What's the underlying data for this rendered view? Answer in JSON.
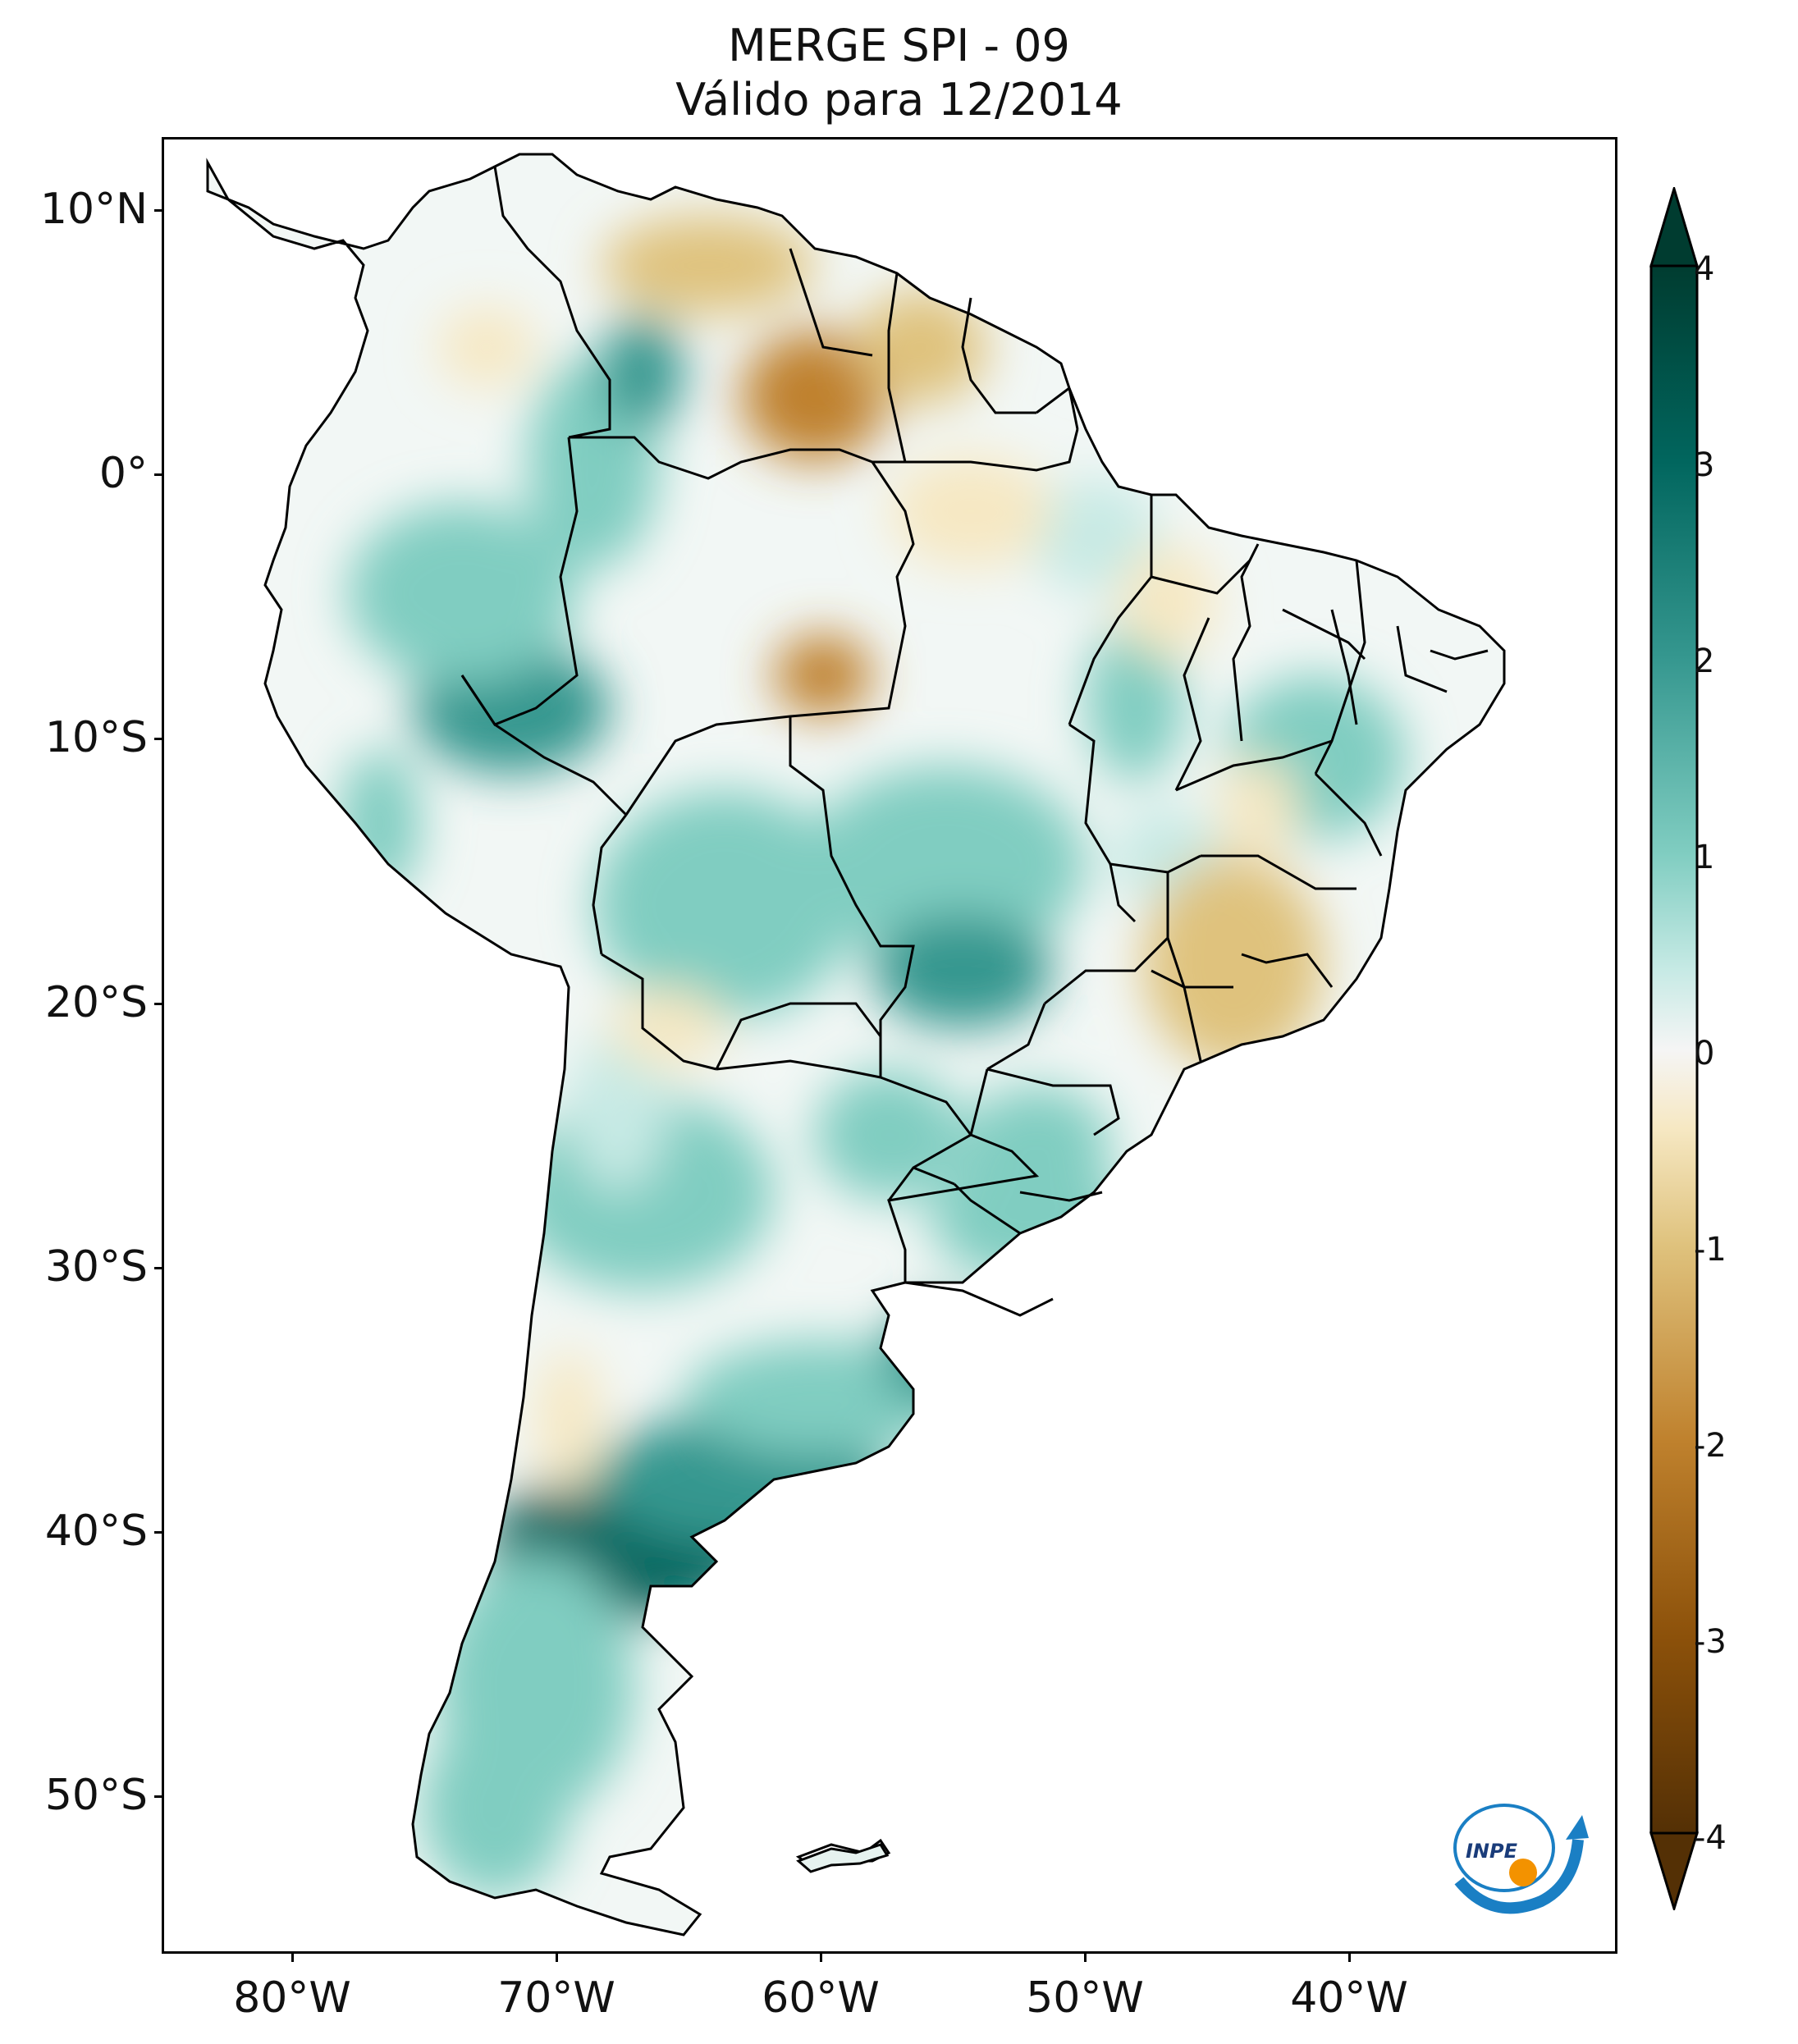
{
  "title": {
    "line1": "MERGE   SPI - 09",
    "line2": "Válido para 12/2014"
  },
  "map": {
    "region": "South America",
    "latitude_labels": [
      "10°N",
      "0°",
      "10°S",
      "20°S",
      "30°S",
      "40°S",
      "50°S"
    ],
    "longitude_labels": [
      "80°W",
      "70°W",
      "60°W",
      "50°W",
      "40°W"
    ]
  },
  "colorbar": {
    "labels": [
      "4",
      "3",
      "2",
      "1",
      "0",
      "-1",
      "-2",
      "-3",
      "-4"
    ],
    "min": -4,
    "max": 4,
    "colors": {
      "wet_extreme": "#003c30",
      "wet_strong": "#01665e",
      "wet_moderate": "#35978f",
      "wet_mild": "#80cdc1",
      "wet_light": "#c7eae5",
      "neutral": "#f5f5f5",
      "dry_light": "#f6e8c3",
      "dry_mild": "#dfc27d",
      "dry_moderate": "#bf812d",
      "dry_strong": "#8c510a",
      "dry_extreme": "#543005"
    }
  },
  "logo": {
    "text": "INPE"
  }
}
